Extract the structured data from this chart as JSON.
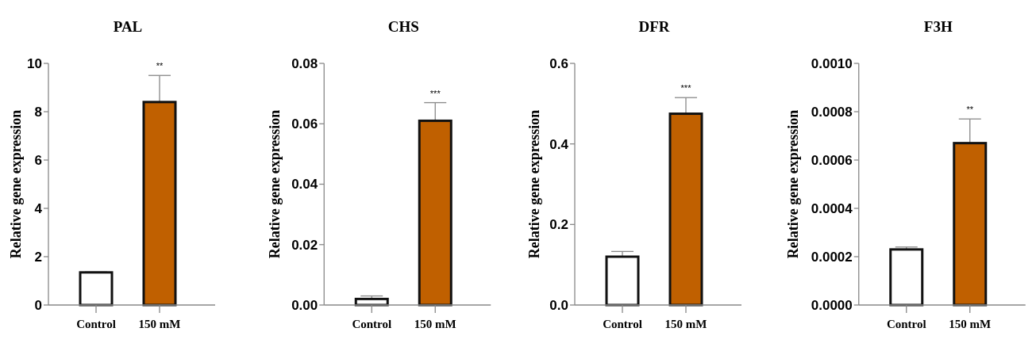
{
  "chart_data": [
    {
      "type": "bar",
      "title": "PAL",
      "ylabel": "Relative gene expression",
      "categories": [
        "Control",
        "150 mM"
      ],
      "values": [
        1.35,
        8.4
      ],
      "errors": [
        0.02,
        1.1
      ],
      "colors": [
        "#ffffff",
        "#c06000"
      ],
      "ylim": [
        0,
        10
      ],
      "yticks": [
        0,
        2,
        4,
        6,
        8,
        10
      ],
      "annotations": [
        {
          "text": "**",
          "x": "150 mM",
          "y": 9.5
        }
      ]
    },
    {
      "type": "bar",
      "title": "CHS",
      "ylabel": "Relative gene expression",
      "categories": [
        "Control",
        "150 mM"
      ],
      "values": [
        0.002,
        0.061
      ],
      "errors": [
        0.001,
        0.006
      ],
      "colors": [
        "#ffffff",
        "#c06000"
      ],
      "ylim": [
        0,
        0.08
      ],
      "yticks": [
        {
          "value": 0,
          "label": "0.00"
        },
        0.02,
        0.04,
        0.06,
        0.08
      ],
      "annotations": [
        {
          "text": "***",
          "x": "150 mM",
          "y": 0.067
        }
      ]
    },
    {
      "type": "bar",
      "title": "DFR",
      "ylabel": "Relative gene expression",
      "categories": [
        "Control",
        "150 mM"
      ],
      "values": [
        0.12,
        0.475
      ],
      "errors": [
        0.013,
        0.04
      ],
      "colors": [
        "#ffffff",
        "#c06000"
      ],
      "ylim": [
        0,
        0.6
      ],
      "yticks": [
        {
          "value": 0,
          "label": "0.0"
        },
        0.2,
        0.4,
        0.6
      ],
      "annotations": [
        {
          "text": "***",
          "x": "150 mM",
          "y": 0.515
        }
      ]
    },
    {
      "type": "bar",
      "title": "F3H",
      "ylabel": "Relative gene expression",
      "categories": [
        "Control",
        "150 mM"
      ],
      "values": [
        0.00023,
        0.00067
      ],
      "errors": [
        1e-05,
        0.0001
      ],
      "colors": [
        "#ffffff",
        "#c06000"
      ],
      "ylim": [
        0,
        0.001
      ],
      "yticks": [
        {
          "value": 0,
          "label": "0.0000"
        },
        {
          "value": 0.0002,
          "label": "0.0002"
        },
        {
          "value": 0.0004,
          "label": "0.0004"
        },
        {
          "value": 0.0006,
          "label": "0.0006"
        },
        {
          "value": 0.0008,
          "label": "0.0008"
        },
        {
          "value": 0.001,
          "label": "0.0010"
        }
      ],
      "annotations": [
        {
          "text": "**",
          "x": "150 mM",
          "y": 0.00077
        }
      ]
    }
  ]
}
